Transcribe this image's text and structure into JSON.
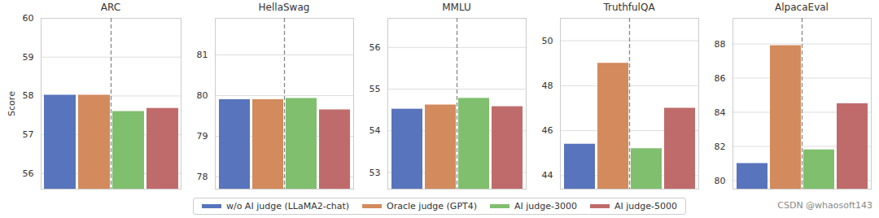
{
  "chart_data": [
    {
      "type": "bar",
      "title": "ARC",
      "ylabel": "Score",
      "categories": [
        "w/o AI judge (LLaMA2-chat)",
        "Oracle judge (GPT4)",
        "AI judge-3000",
        "AI judge-5000"
      ],
      "values": [
        58.02,
        58.02,
        57.6,
        57.68
      ],
      "colors": [
        "#5874bc",
        "#d38a5c",
        "#7fbf6e",
        "#c06b6b"
      ],
      "ylim": [
        55.6,
        60
      ],
      "yticks": [
        56,
        57,
        58,
        59,
        60
      ],
      "grid": true,
      "tick_labels": "y",
      "legend": "bottom"
    },
    {
      "type": "bar",
      "title": "HellaSwag",
      "categories": [
        "w/o AI judge (LLaMA2-chat)",
        "Oracle judge (GPT4)",
        "AI judge-3000",
        "AI judge-5000"
      ],
      "values": [
        79.9,
        79.9,
        79.93,
        79.65
      ],
      "colors": [
        "#5874bc",
        "#d38a5c",
        "#7fbf6e",
        "#c06b6b"
      ],
      "ylim": [
        77.7,
        81.9
      ],
      "yticks": [
        78,
        79,
        80,
        81
      ],
      "grid": true,
      "tick_labels": "y"
    },
    {
      "type": "bar",
      "title": "MMLU",
      "categories": [
        "w/o AI judge (LLaMA2-chat)",
        "Oracle judge (GPT4)",
        "AI judge-3000",
        "AI judge-5000"
      ],
      "values": [
        54.52,
        54.62,
        54.78,
        54.58
      ],
      "colors": [
        "#5874bc",
        "#d38a5c",
        "#7fbf6e",
        "#c06b6b"
      ],
      "ylim": [
        52.6,
        56.7
      ],
      "yticks": [
        53,
        54,
        55,
        56
      ],
      "grid": true,
      "tick_labels": "y"
    },
    {
      "type": "bar",
      "title": "TruthfulQA",
      "categories": [
        "w/o AI judge (LLaMA2-chat)",
        "Oracle judge (GPT4)",
        "AI judge-3000",
        "AI judge-5000"
      ],
      "values": [
        45.4,
        49.0,
        45.2,
        47.0
      ],
      "colors": [
        "#5874bc",
        "#d38a5c",
        "#7fbf6e",
        "#c06b6b"
      ],
      "ylim": [
        43.4,
        51
      ],
      "yticks": [
        44,
        46,
        48,
        50
      ],
      "grid": true,
      "tick_labels": "y"
    },
    {
      "type": "bar",
      "title": "AlpacaEval",
      "categories": [
        "w/o AI judge (LLaMA2-chat)",
        "Oracle judge (GPT4)",
        "AI judge-3000",
        "AI judge-5000"
      ],
      "values": [
        81.0,
        87.9,
        81.8,
        84.5
      ],
      "colors": [
        "#5874bc",
        "#d38a5c",
        "#7fbf6e",
        "#c06b6b"
      ],
      "ylim": [
        79.5,
        89.5
      ],
      "yticks": [
        80,
        82,
        84,
        86,
        88
      ],
      "grid": true,
      "tick_labels": "y",
      "annotations": [
        "CSDN @whaosoft143"
      ]
    }
  ]
}
